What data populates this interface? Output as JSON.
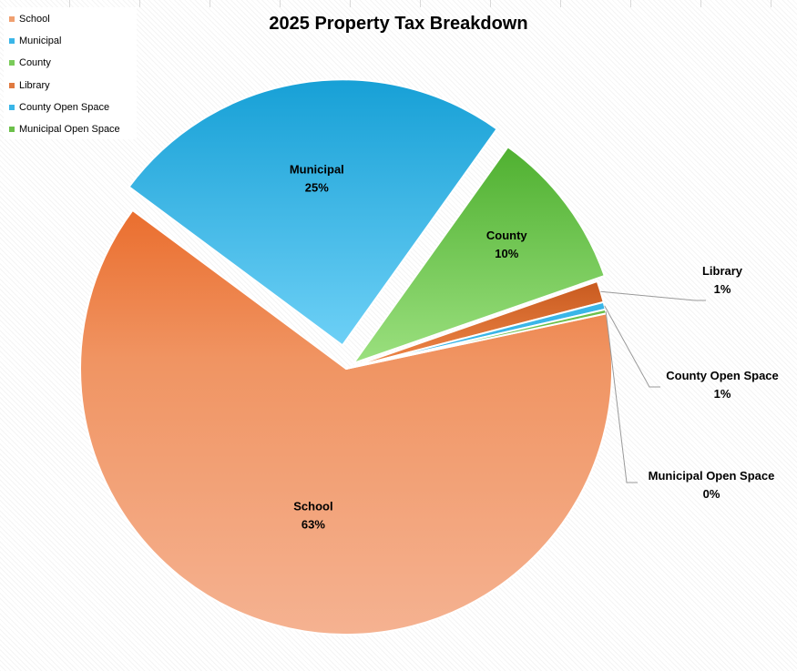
{
  "chart_data": {
    "type": "pie",
    "title": "2025 Property Tax Breakdown",
    "legend_position": "top-left",
    "series": [
      {
        "categories": [
          "School",
          "Municipal",
          "County",
          "Library",
          "County Open Space",
          "Municipal Open Space"
        ],
        "values": [
          63,
          25,
          10,
          1,
          1,
          0
        ],
        "data_labels": [
          "63%",
          "25%",
          "10%",
          "1%",
          "1%",
          "0%"
        ]
      }
    ],
    "colors": [
      "#F0A070",
      "#3AB6E8",
      "#7ACB5A",
      "#E07A40",
      "#3AB6E8",
      "#6CC04A"
    ]
  }
}
